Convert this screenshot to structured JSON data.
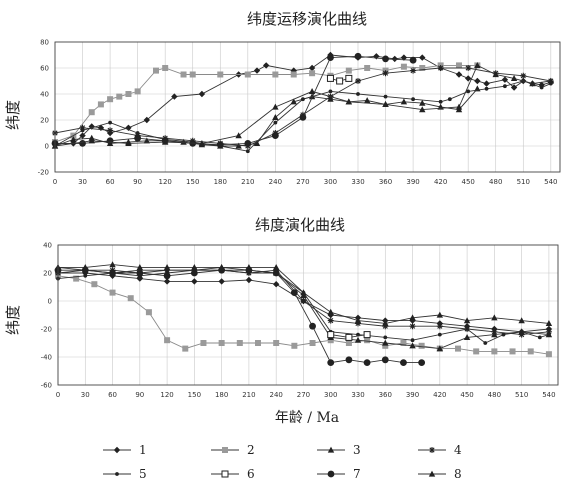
{
  "figure": {
    "xlabel": "年龄 / Ma"
  },
  "colors": {
    "black": "#222222",
    "gray": "#9a9a9a"
  },
  "legend": [
    {
      "id": "1",
      "label": "1",
      "marker": "diamond",
      "color": "#222222"
    },
    {
      "id": "2",
      "label": "2",
      "marker": "square",
      "color": "#9a9a9a"
    },
    {
      "id": "3",
      "label": "3",
      "marker": "triangle",
      "color": "#222222"
    },
    {
      "id": "4",
      "label": "4",
      "marker": "star",
      "color": "#222222"
    },
    {
      "id": "5",
      "label": "5",
      "marker": "smalldot",
      "color": "#222222"
    },
    {
      "id": "6",
      "label": "6",
      "marker": "opensquare",
      "color": "#222222"
    },
    {
      "id": "7",
      "label": "7",
      "marker": "bigdot",
      "color": "#222222"
    },
    {
      "id": "8",
      "label": "8",
      "marker": "uptri",
      "color": "#222222"
    }
  ],
  "chart_data": [
    {
      "type": "line",
      "title": "纬度运移演化曲线",
      "ylabel": "纬度",
      "xlabel": "",
      "xlim": [
        0,
        550
      ],
      "ylim": [
        -20,
        80
      ],
      "xticks": [
        0,
        30,
        60,
        90,
        120,
        150,
        180,
        210,
        240,
        270,
        300,
        330,
        360,
        390,
        420,
        450,
        480,
        510,
        540
      ],
      "xtick_labels": [
        "0",
        "30",
        "60",
        "90",
        "120",
        "150",
        "180",
        "210",
        "240",
        "270",
        "300",
        "330",
        "360",
        "390",
        "420",
        "450",
        "480",
        "510",
        "540"
      ],
      "yticks": [
        -20,
        0,
        20,
        40,
        60,
        80
      ],
      "ytick_labels": [
        "-20",
        "0",
        "20",
        "40",
        "60",
        "80"
      ],
      "grid": true,
      "series": [
        {
          "name": "1",
          "x": [
            0,
            20,
            30,
            40,
            50,
            60,
            80,
            100,
            130,
            160,
            200,
            220,
            230,
            260,
            280,
            300,
            330,
            350,
            370,
            380,
            400,
            420,
            440,
            450,
            460,
            470,
            490,
            500,
            510,
            520,
            530,
            540
          ],
          "y": [
            2,
            2,
            8,
            15,
            14,
            10,
            14,
            20,
            38,
            40,
            55,
            58,
            62,
            58,
            60,
            70,
            68,
            69,
            67,
            68,
            68,
            60,
            55,
            52,
            50,
            48,
            51,
            45,
            50,
            48,
            47,
            49
          ]
        },
        {
          "name": "2",
          "x": [
            0,
            20,
            40,
            50,
            60,
            70,
            80,
            90,
            110,
            120,
            140,
            150,
            180,
            210,
            240,
            260,
            280,
            300,
            320,
            340,
            360,
            380,
            400,
            420,
            440,
            460
          ],
          "y": [
            3,
            8,
            26,
            32,
            36,
            38,
            40,
            42,
            58,
            60,
            55,
            55,
            55,
            55,
            55,
            55,
            56,
            54,
            58,
            60,
            58,
            61,
            60,
            62,
            62,
            62
          ]
        },
        {
          "name": "3",
          "x": [
            0,
            20,
            40,
            60,
            80,
            100,
            120,
            140,
            160,
            180,
            200,
            220,
            240,
            260,
            280,
            300,
            320,
            340,
            360,
            380,
            400,
            420,
            440,
            460
          ],
          "y": [
            0,
            5,
            6,
            2,
            3,
            4,
            4,
            3,
            1,
            0,
            0,
            2,
            22,
            34,
            38,
            36,
            34,
            35,
            32,
            34,
            33,
            30,
            28,
            44
          ]
        },
        {
          "name": "4",
          "x": [
            0,
            30,
            60,
            90,
            120,
            150,
            180,
            210,
            240,
            270,
            300,
            330,
            360,
            390,
            420,
            450,
            480,
            510,
            540
          ],
          "y": [
            10,
            14,
            12,
            8,
            6,
            4,
            2,
            0,
            10,
            24,
            38,
            50,
            56,
            58,
            60,
            60,
            56,
            54,
            50
          ]
        },
        {
          "name": "5",
          "x": [
            0,
            30,
            60,
            90,
            120,
            150,
            180,
            210,
            240,
            270,
            300,
            330,
            360,
            390,
            420,
            430,
            450,
            470,
            490,
            510,
            530,
            540
          ],
          "y": [
            0,
            12,
            18,
            10,
            5,
            3,
            0,
            -4,
            18,
            36,
            42,
            40,
            38,
            36,
            34,
            36,
            42,
            44,
            46,
            50,
            45,
            48
          ]
        },
        {
          "name": "6",
          "x": [
            300,
            310,
            320
          ],
          "y": [
            52,
            50,
            52
          ]
        },
        {
          "name": "7",
          "x": [
            0,
            30,
            60,
            90,
            120,
            150,
            180,
            210,
            240,
            270,
            300,
            330,
            360,
            390
          ],
          "y": [
            2,
            2,
            4,
            6,
            4,
            2,
            1,
            2,
            8,
            22,
            68,
            69,
            67,
            66
          ]
        },
        {
          "name": "8",
          "x": [
            0,
            40,
            80,
            120,
            160,
            200,
            240,
            280,
            320,
            360,
            400,
            440,
            460,
            480,
            500,
            520,
            540
          ],
          "y": [
            0,
            4,
            2,
            3,
            2,
            8,
            30,
            42,
            34,
            32,
            28,
            30,
            62,
            55,
            52,
            48,
            50
          ]
        }
      ]
    },
    {
      "type": "line",
      "title": "纬度演化曲线",
      "ylabel": "纬度",
      "xlabel": "年龄 / Ma",
      "xlim": [
        0,
        550
      ],
      "ylim": [
        -60,
        40
      ],
      "xticks": [
        0,
        30,
        60,
        90,
        120,
        150,
        180,
        210,
        240,
        270,
        300,
        330,
        360,
        390,
        420,
        450,
        480,
        510,
        540
      ],
      "xtick_labels": [
        "0",
        "30",
        "60",
        "90",
        "120",
        "150",
        "180",
        "210",
        "240",
        "270",
        "300",
        "330",
        "360",
        "390",
        "420",
        "450",
        "480",
        "510",
        "540"
      ],
      "yticks": [
        -60,
        -40,
        -20,
        0,
        20,
        40
      ],
      "ytick_labels": [
        "-60",
        "-40",
        "-20",
        "0",
        "20",
        "40"
      ],
      "grid": true,
      "series": [
        {
          "name": "1",
          "x": [
            0,
            30,
            60,
            90,
            120,
            150,
            180,
            210,
            240,
            270,
            300,
            330,
            360,
            390,
            420,
            450,
            480,
            510,
            540
          ],
          "y": [
            20,
            20,
            18,
            16,
            14,
            14,
            14,
            15,
            12,
            0,
            -10,
            -12,
            -14,
            -14,
            -16,
            -18,
            -20,
            -22,
            -20
          ]
        },
        {
          "name": "2",
          "x": [
            0,
            20,
            40,
            60,
            80,
            100,
            120,
            140,
            160,
            180,
            200,
            220,
            240,
            260,
            280,
            300,
            320,
            340,
            360,
            380,
            400,
            420,
            440,
            460,
            480,
            500,
            520,
            540
          ],
          "y": [
            18,
            16,
            12,
            6,
            2,
            -8,
            -28,
            -34,
            -30,
            -30,
            -30,
            -30,
            -30,
            -32,
            -30,
            -28,
            -30,
            -28,
            -32,
            -30,
            -32,
            -34,
            -34,
            -36,
            -36,
            -36,
            -36,
            -38
          ]
        },
        {
          "name": "3",
          "x": [
            0,
            30,
            60,
            90,
            120,
            150,
            180,
            210,
            240,
            270,
            300,
            330,
            360,
            390,
            420,
            450,
            480,
            510,
            540
          ],
          "y": [
            24,
            22,
            20,
            18,
            20,
            22,
            24,
            22,
            20,
            4,
            -26,
            -28,
            -30,
            -32,
            -34,
            -26,
            -24,
            -22,
            -24
          ]
        },
        {
          "name": "4",
          "x": [
            0,
            30,
            60,
            90,
            120,
            150,
            180,
            210,
            240,
            270,
            300,
            330,
            360,
            390,
            420,
            450,
            480,
            510,
            540
          ],
          "y": [
            20,
            22,
            22,
            20,
            22,
            22,
            22,
            20,
            22,
            0,
            -14,
            -16,
            -18,
            -18,
            -18,
            -20,
            -22,
            -24,
            -22
          ]
        },
        {
          "name": "5",
          "x": [
            0,
            30,
            60,
            90,
            120,
            150,
            180,
            210,
            240,
            270,
            300,
            330,
            360,
            390,
            420,
            450,
            470,
            490,
            510,
            530,
            540
          ],
          "y": [
            16,
            18,
            20,
            22,
            22,
            22,
            22,
            20,
            20,
            6,
            -22,
            -24,
            -26,
            -28,
            -24,
            -20,
            -30,
            -24,
            -22,
            -26,
            -24
          ]
        },
        {
          "name": "6",
          "x": [
            300,
            320,
            340
          ],
          "y": [
            -24,
            -26,
            -24
          ]
        },
        {
          "name": "7",
          "x": [
            0,
            30,
            60,
            90,
            120,
            150,
            180,
            210,
            240,
            260,
            280,
            300,
            320,
            340,
            360,
            380,
            400
          ],
          "y": [
            22,
            22,
            20,
            20,
            18,
            20,
            22,
            22,
            20,
            6,
            -18,
            -44,
            -42,
            -44,
            -42,
            -44,
            -44
          ]
        },
        {
          "name": "8",
          "x": [
            0,
            30,
            60,
            90,
            120,
            150,
            180,
            210,
            240,
            270,
            300,
            330,
            360,
            390,
            420,
            450,
            480,
            510,
            540
          ],
          "y": [
            24,
            24,
            26,
            24,
            24,
            24,
            24,
            24,
            24,
            6,
            -8,
            -14,
            -16,
            -12,
            -10,
            -14,
            -12,
            -14,
            -16
          ]
        }
      ]
    }
  ]
}
